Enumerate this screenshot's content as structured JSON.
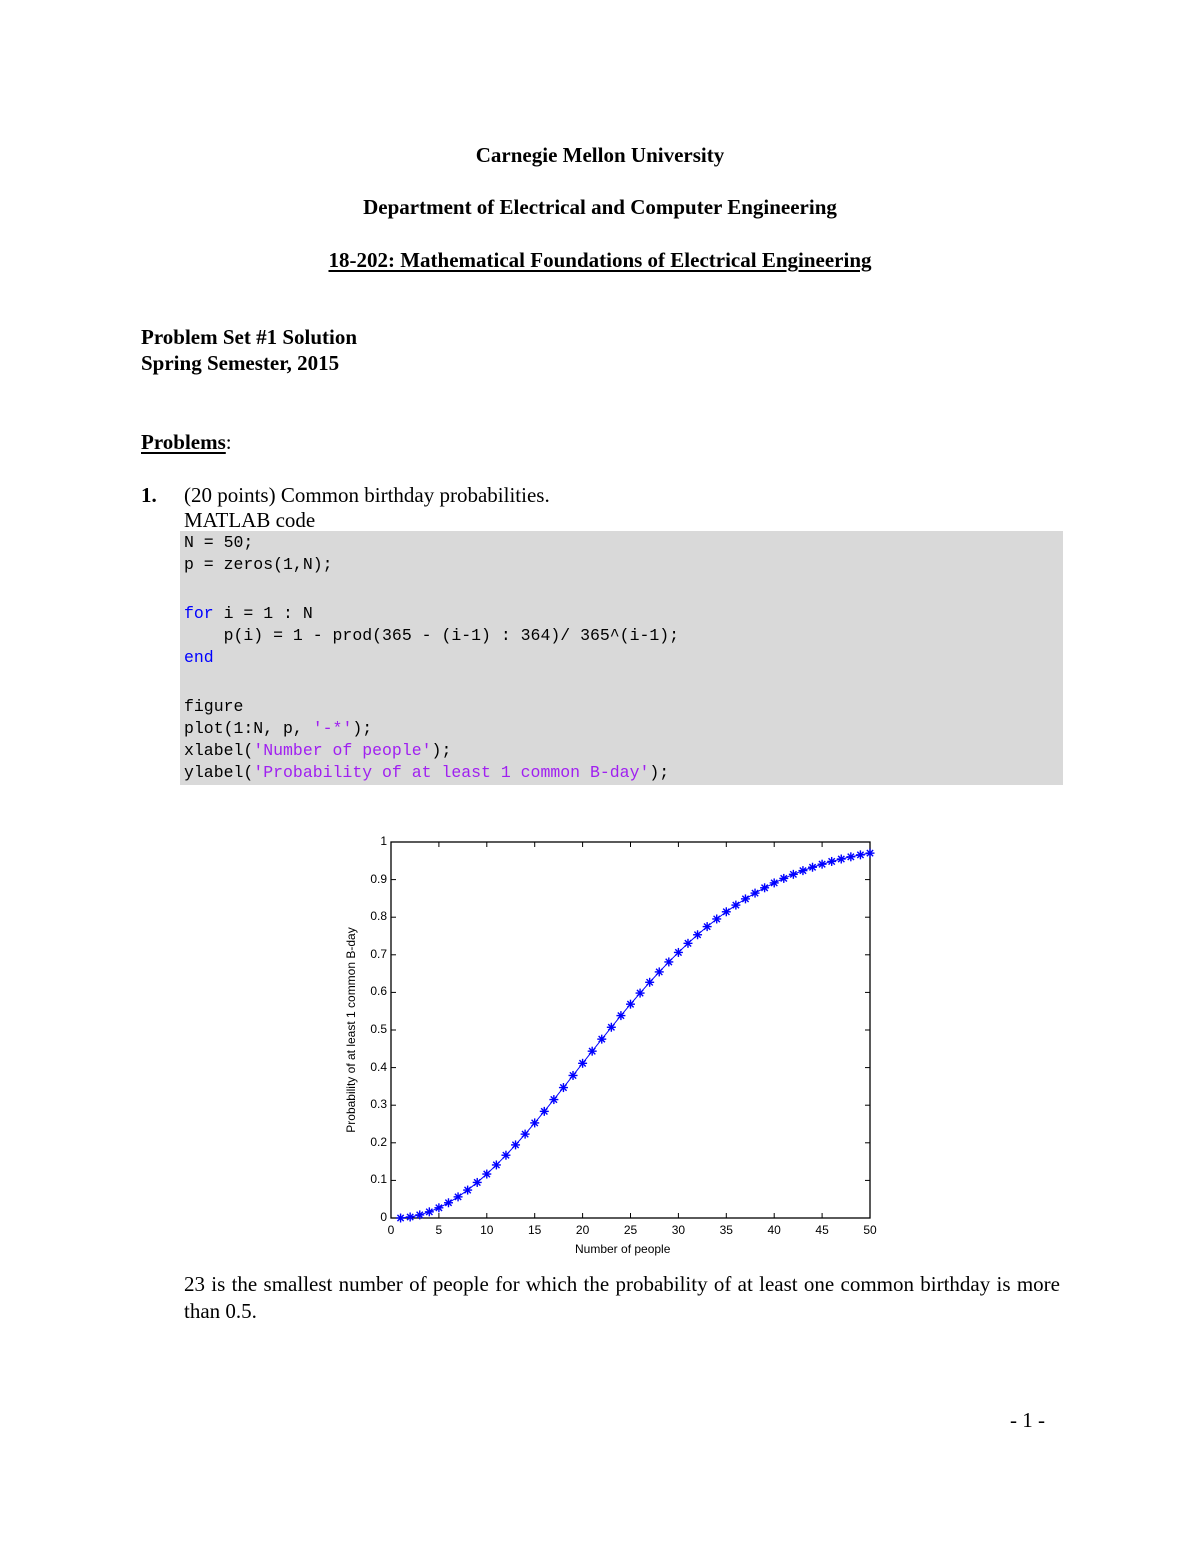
{
  "header": {
    "university": "Carnegie Mellon University",
    "department": "Department of Electrical and Computer Engineering",
    "course": "18-202:  Mathematical Foundations of Electrical Engineering"
  },
  "doc": {
    "title": "Problem Set #1 Solution",
    "semester": "Spring Semester, 2015",
    "problems_heading": "Problems",
    "problems_colon": ":"
  },
  "problem1": {
    "number": "1.",
    "description": "(20 points) Common birthday probabilities.",
    "code_label": "MATLAB code",
    "code": {
      "line1": "N = 50;",
      "line2": "p = zeros(1,N);",
      "line4_kw": "for",
      "line4_rest": " i = 1 : N",
      "line5": "    p(i) = 1 - prod(365 - (i-1) : 364)/ 365^(i-1);",
      "line6_kw": "end",
      "line8": "figure",
      "line9_pre": "plot(1:N, p, ",
      "line9_str": "'-*'",
      "line9_post": ");",
      "line10_pre": "xlabel(",
      "line10_str": "'Number of people'",
      "line10_post": ");",
      "line11_pre": "ylabel(",
      "line11_str": "'Probability of at least 1 common B-day'",
      "line11_post": ");"
    },
    "conclusion": "23 is the smallest number of people for which the probability of at least one common birthday is more than 0.5."
  },
  "footer": {
    "page_number": "- 1 -"
  },
  "colors": {
    "code_background": "#d9d9d9",
    "keyword": "#0000ff",
    "string": "#a020f0",
    "series": "#0000ff"
  },
  "chart_data": {
    "type": "line",
    "title": "",
    "xlabel": "Number of people",
    "ylabel": "Probability of at least 1 common B-day",
    "xlim": [
      0,
      50
    ],
    "ylim": [
      0,
      1
    ],
    "xticks": [
      "0",
      "5",
      "10",
      "15",
      "20",
      "25",
      "30",
      "35",
      "40",
      "45",
      "50"
    ],
    "yticks": [
      "0",
      "0.1",
      "0.2",
      "0.3",
      "0.4",
      "0.5",
      "0.6",
      "0.7",
      "0.8",
      "0.9",
      "1"
    ],
    "grid": false,
    "legend": null,
    "marker": "*",
    "line_style": "-",
    "series": [
      {
        "name": "p",
        "x": [
          1,
          2,
          3,
          4,
          5,
          6,
          7,
          8,
          9,
          10,
          11,
          12,
          13,
          14,
          15,
          16,
          17,
          18,
          19,
          20,
          21,
          22,
          23,
          24,
          25,
          26,
          27,
          28,
          29,
          30,
          31,
          32,
          33,
          34,
          35,
          36,
          37,
          38,
          39,
          40,
          41,
          42,
          43,
          44,
          45,
          46,
          47,
          48,
          49,
          50
        ],
        "values": [
          0.0,
          0.0027,
          0.0082,
          0.0164,
          0.0271,
          0.0405,
          0.0562,
          0.0743,
          0.0946,
          0.1169,
          0.1411,
          0.167,
          0.1944,
          0.2231,
          0.2529,
          0.2836,
          0.315,
          0.3469,
          0.3791,
          0.4114,
          0.4437,
          0.4757,
          0.5073,
          0.5383,
          0.5687,
          0.5982,
          0.6269,
          0.6545,
          0.681,
          0.7063,
          0.7305,
          0.7533,
          0.775,
          0.7953,
          0.8144,
          0.8322,
          0.8487,
          0.8641,
          0.8782,
          0.8912,
          0.9032,
          0.914,
          0.9239,
          0.9329,
          0.941,
          0.9483,
          0.9548,
          0.9606,
          0.9658,
          0.9704
        ]
      }
    ]
  }
}
